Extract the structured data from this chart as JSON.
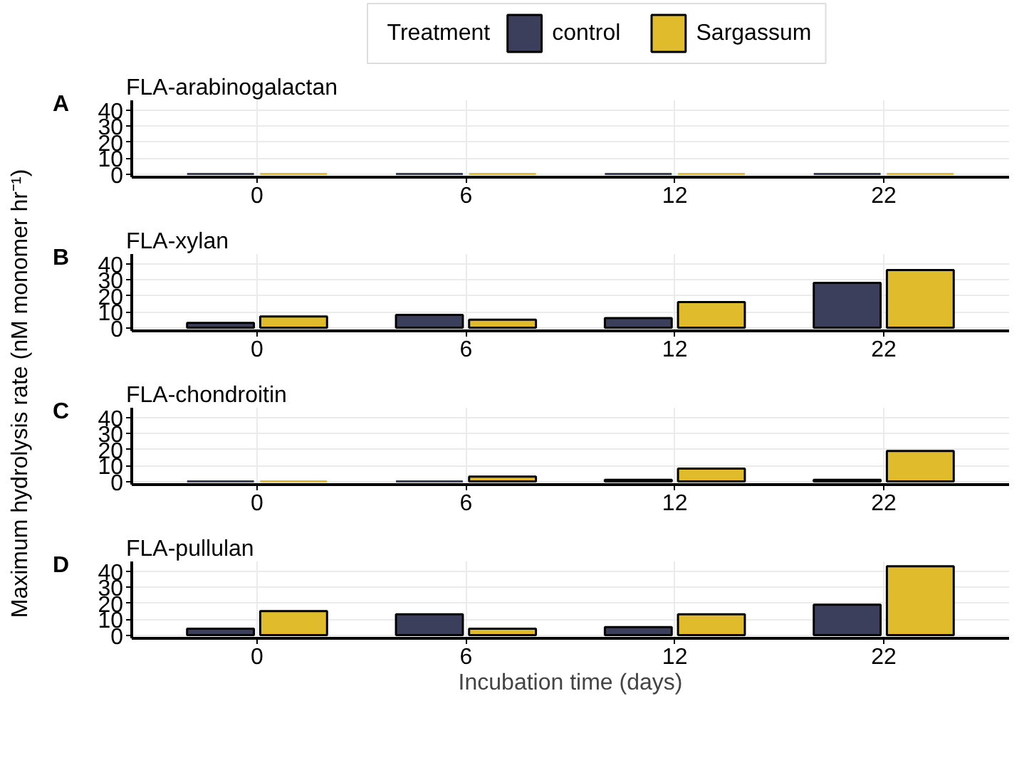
{
  "chart_data": [
    {
      "type": "bar",
      "title": "FLA-arabinogalactan",
      "annotations": [
        "A"
      ],
      "ylabel": "Maximum hydrolysis rate (nM monomer hr⁻¹)",
      "legend": "top",
      "legend_title": "Treatment",
      "categories": [
        "0",
        "6",
        "12",
        "22"
      ],
      "ylim": [
        -2,
        46
      ],
      "yticks": [
        0,
        10,
        20,
        30,
        40
      ],
      "grid": true,
      "series": [
        {
          "name": "control",
          "color": "#3b3f5c",
          "values": [
            0,
            0,
            0,
            0
          ]
        },
        {
          "name": "Sargassum",
          "color": "#e0bc2c",
          "values": [
            0,
            0,
            0,
            0
          ]
        }
      ]
    },
    {
      "type": "bar",
      "title": "FLA-xylan",
      "annotations": [
        "B"
      ],
      "categories": [
        "0",
        "6",
        "12",
        "22"
      ],
      "ylim": [
        -2,
        46
      ],
      "yticks": [
        0,
        10,
        20,
        30,
        40
      ],
      "grid": true,
      "series": [
        {
          "color": "#3b3f5c",
          "values": [
            3,
            8,
            6,
            28
          ]
        },
        {
          "color": "#e0bc2c",
          "values": [
            7,
            5,
            16,
            36
          ]
        }
      ]
    },
    {
      "type": "bar",
      "title": "FLA-chondroitin",
      "annotations": [
        "C"
      ],
      "categories": [
        "0",
        "6",
        "12",
        "22"
      ],
      "ylim": [
        -2,
        46
      ],
      "yticks": [
        0,
        10,
        20,
        30,
        40
      ],
      "grid": true,
      "series": [
        {
          "color": "#3b3f5c",
          "values": [
            0,
            0,
            1,
            1
          ]
        },
        {
          "color": "#e0bc2c",
          "values": [
            0,
            3,
            8,
            19
          ]
        }
      ]
    },
    {
      "type": "bar",
      "title": "FLA-pullulan",
      "annotations": [
        "D"
      ],
      "xlabel": "Incubation time (days)",
      "categories": [
        "0",
        "6",
        "12",
        "22"
      ],
      "ylim": [
        -2,
        46
      ],
      "yticks": [
        0,
        10,
        20,
        30,
        40
      ],
      "grid": true,
      "series": [
        {
          "color": "#3b3f5c",
          "values": [
            4,
            13,
            5,
            19
          ]
        },
        {
          "color": "#e0bc2c",
          "values": [
            15,
            4,
            13,
            43
          ]
        }
      ]
    }
  ]
}
